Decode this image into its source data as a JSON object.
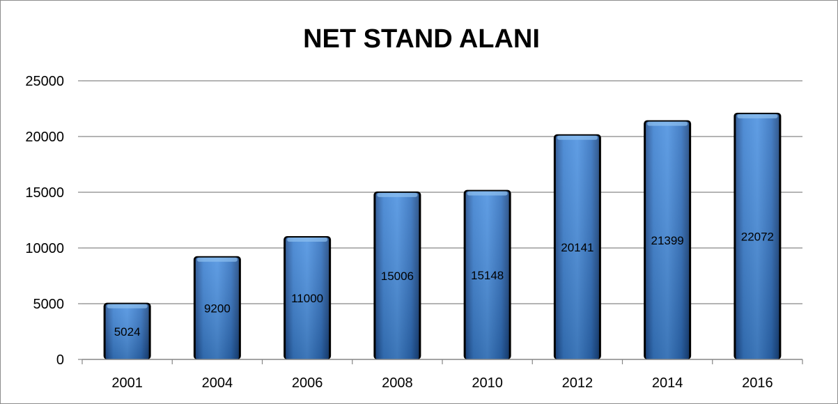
{
  "chart_data": {
    "type": "bar",
    "title": "NET STAND ALANI",
    "xlabel": "",
    "ylabel": "",
    "categories": [
      "2001",
      "2004",
      "2006",
      "2008",
      "2010",
      "2012",
      "2014",
      "2016"
    ],
    "values": [
      5024,
      9200,
      11000,
      15006,
      15148,
      20141,
      21399,
      22072
    ],
    "data_labels": [
      "5024",
      "9200",
      "11000",
      "15006",
      "15148",
      "20141",
      "21399",
      "22072"
    ],
    "y_ticks": [
      "0",
      "5000",
      "10000",
      "15000",
      "20000",
      "25000"
    ],
    "ylim": [
      0,
      25000
    ],
    "grid": true,
    "legend": "none",
    "colors": {
      "bar_top": "#5b9bd5",
      "bar_mid": "#2e75c8",
      "bar_bottom": "#1f4e8a",
      "grid": "#868686"
    }
  }
}
